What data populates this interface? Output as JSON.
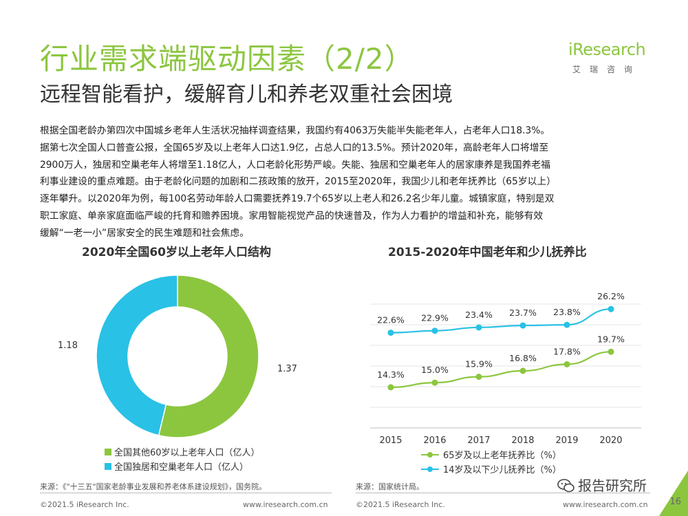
{
  "header": {
    "title": "行业需求端驱动因素（2/2）",
    "subtitle": "远程智能看护，缓解育儿和养老双重社会困境"
  },
  "logo": {
    "word": "iResearch",
    "cn": "艾瑞咨询"
  },
  "body": {
    "lines": [
      "根据全国老龄办第四次中国城乡老年人生活状况抽样调查结果，我国约有4063万失能半失能老年人，占老年人口18.3%。",
      "据第七次全国人口普查公报，全国65岁及以上老年人口达1.9亿，占总人口的13.5%。预计2020年，高龄老年人口将增至",
      "2900万人，独居和空巢老年人将增至1.18亿人，人口老龄化形势严峻。失能、独居和空巢老年人的居家康养是我国养老福",
      "利事业建设的重点难题。由于老龄化问题的加剧和二孩政策的放开，2015至2020年，我国少儿和老年抚养比（65岁以上）",
      "逐年攀升。以2020年为例，每100名劳动年龄人口需要抚养19.7个65岁以上老人和26.2名少年儿童。城镇家庭，特别是双",
      "职工家庭、单亲家庭面临严峻的托育和赡养困境。家用智能视觉产品的快速普及，作为人力看护的增益和补充，能够有效",
      "缓解“一老一小”居家安全的民生难题和社会焦虑。"
    ]
  },
  "colors": {
    "green": "#8cc63f",
    "cyan": "#29c1e6",
    "text": "#333333"
  },
  "chart_data": [
    {
      "type": "pie",
      "title": "2020年全国60岁以上老年人口结构",
      "slices": [
        {
          "name": "全国其他60岁以上老年人口（亿人）",
          "value": 1.37,
          "label": "1.37",
          "color": "#8cc63f"
        },
        {
          "name": "全国独居和空巢老年人口（亿人）",
          "value": 1.18,
          "label": "1.18",
          "color": "#29c1e6"
        }
      ],
      "donut": true,
      "legend": "bottom"
    },
    {
      "type": "line",
      "title": "2015-2020年中国老年和少儿抚养比",
      "categories": [
        "2015",
        "2016",
        "2017",
        "2018",
        "2019",
        "2020"
      ],
      "series": [
        {
          "name": "65岁及以上老年抚养比（%）",
          "values": [
            14.3,
            15.0,
            15.9,
            16.8,
            17.8,
            19.7
          ],
          "labels": [
            "14.3%",
            "15.0%",
            "15.9%",
            "16.8%",
            "17.8%",
            "19.7%"
          ],
          "color": "#8cc63f"
        },
        {
          "name": "14岁及以下少儿抚养比（%）",
          "values": [
            22.6,
            22.9,
            23.4,
            23.7,
            23.8,
            26.2
          ],
          "labels": [
            "22.6%",
            "22.9%",
            "23.4%",
            "23.7%",
            "23.8%",
            "26.2%"
          ],
          "color": "#29c1e6"
        }
      ],
      "grid": "horizontal",
      "legend": "bottom"
    }
  ],
  "sources": {
    "left": "来源：《\"十三五\"国家老龄事业发展和养老体系建设规划》，国务院。",
    "right": "来源：国家统计局。"
  },
  "footer": {
    "copyright_left": "©2021.5 iResearch Inc.",
    "site_left": "www.iresearch.com.cn",
    "copyright_right": "©2021.5 iResearch Inc.",
    "site_right": "www.iresearch.com.cn"
  },
  "watermark": "报告研究所",
  "page_number": "16"
}
